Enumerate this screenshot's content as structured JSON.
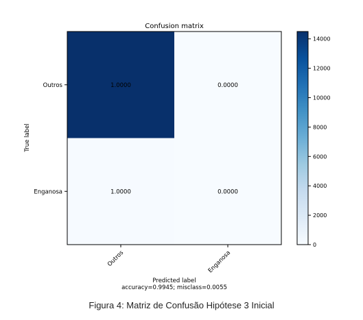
{
  "chart_data": {
    "type": "heatmap",
    "title": "Confusion matrix",
    "xlabel": "Predicted label",
    "ylabel": "True label",
    "x_categories": [
      "Outros",
      "Enganosa"
    ],
    "y_categories": [
      "Outros",
      "Enganosa"
    ],
    "cell_labels": [
      [
        "1.0000",
        "0.0000"
      ],
      [
        "1.0000",
        "0.0000"
      ]
    ],
    "counts": [
      [
        14500,
        0
      ],
      [
        80,
        0
      ]
    ],
    "subtitle": "accuracy=0.9945; misclass=0.0055",
    "colormap": "Blues",
    "colorbar": {
      "vmin": 0,
      "vmax": 14500,
      "ticks": [
        0,
        2000,
        4000,
        6000,
        8000,
        10000,
        12000,
        14000
      ]
    },
    "colors": {
      "low": "#f7fbff",
      "mid": "#6baed6",
      "high": "#08306b"
    }
  },
  "figure_caption": "Figura 4: Matriz de Confusão Hipótese 3 Inicial"
}
